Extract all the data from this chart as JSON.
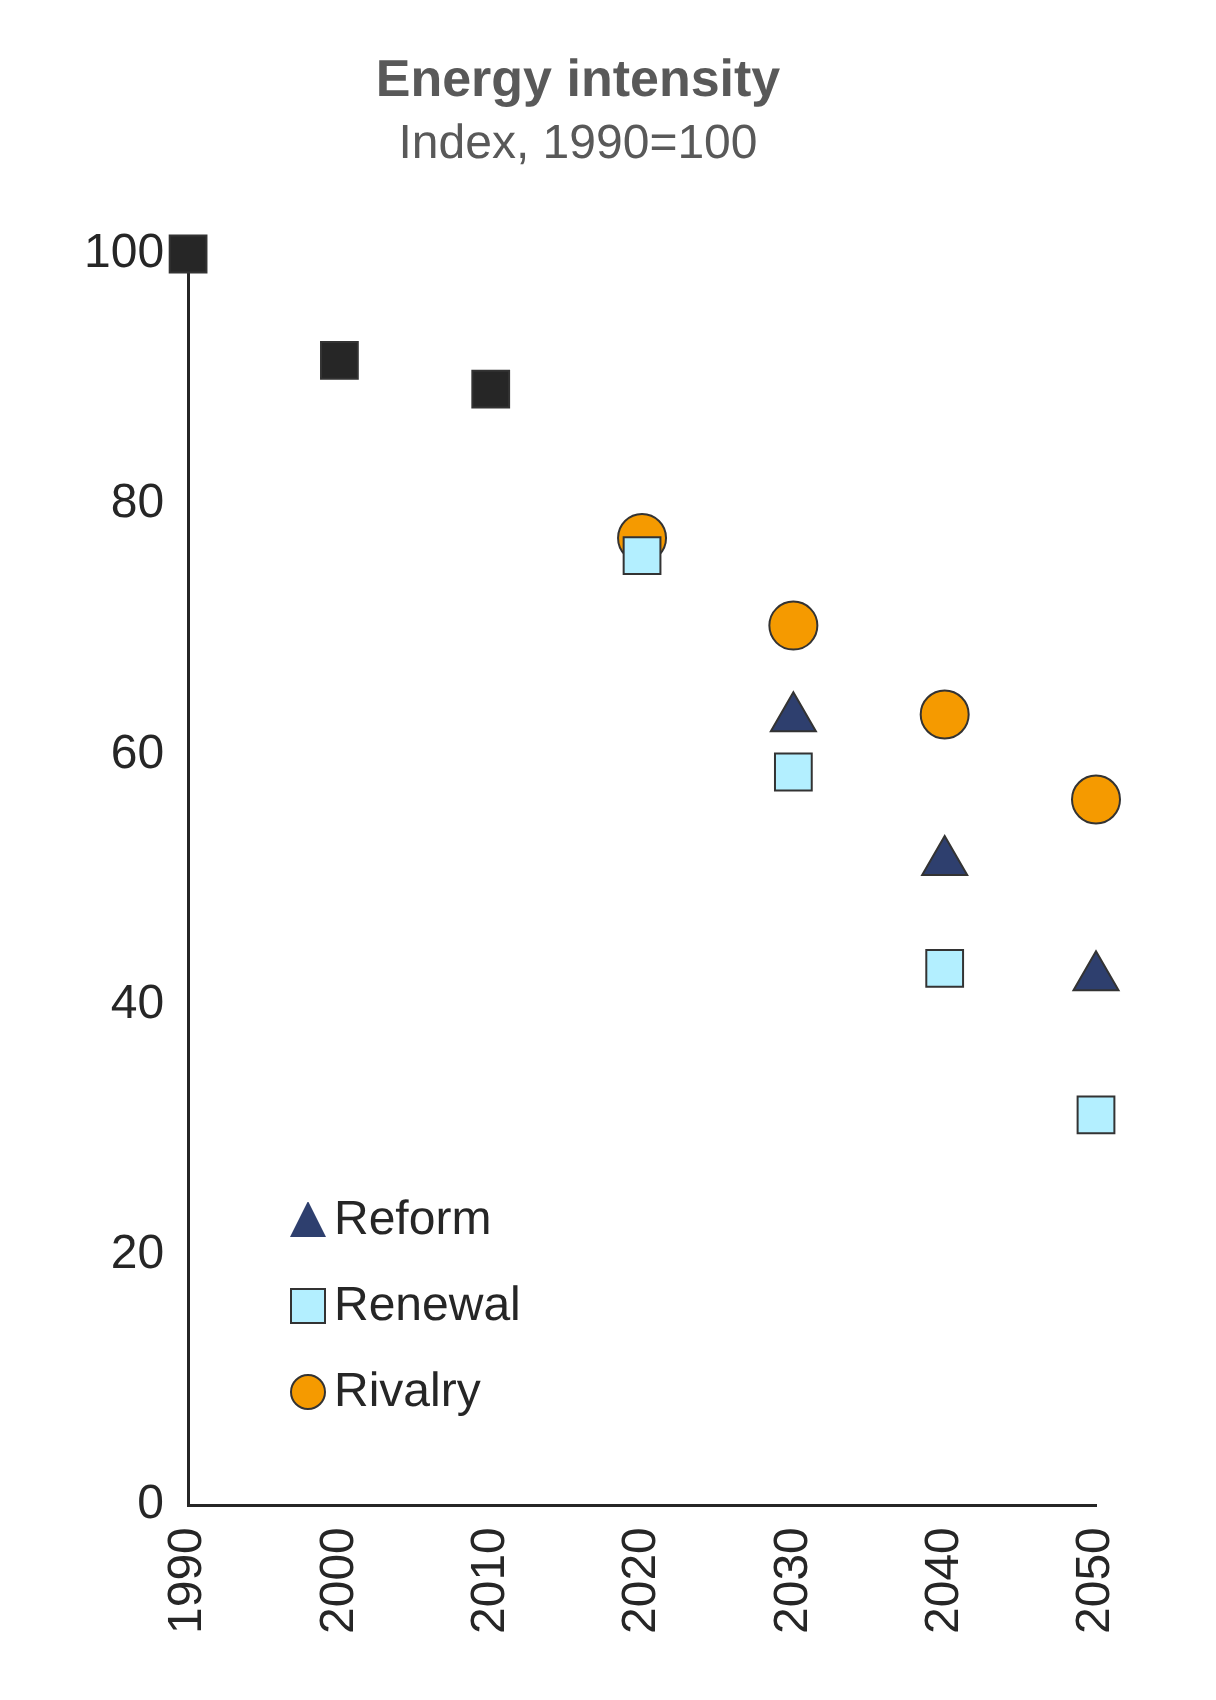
{
  "chart_data": {
    "type": "scatter",
    "title": "Energy intensity",
    "subtitle": "Index, 1990=100",
    "categories": [
      "1990",
      "2000",
      "2010",
      "2020",
      "2030",
      "2040",
      "2050"
    ],
    "series": [
      {
        "color": "#262626",
        "marker": "square",
        "values": [
          100,
          91.5,
          89.2,
          null,
          null,
          null,
          null
        ]
      },
      {
        "name": "Reform",
        "color": "#2e3f6e",
        "marker": "triangle",
        "values": [
          null,
          null,
          null,
          null,
          62.9,
          51.4,
          42.2
        ]
      },
      {
        "name": "Renewal",
        "color": "#b3efff",
        "marker": "square",
        "values": [
          null,
          null,
          null,
          75.9,
          58.6,
          42.9,
          31.2
        ]
      },
      {
        "name": "Rivalry",
        "color": "#f59a00",
        "marker": "circle",
        "values": [
          null,
          null,
          null,
          77.3,
          70.3,
          63.2,
          56.4
        ]
      }
    ],
    "ylim": [
      0,
      100
    ],
    "yticks": [
      0,
      20,
      40,
      60,
      80,
      100
    ],
    "grid": false,
    "legend": "bottom left"
  }
}
